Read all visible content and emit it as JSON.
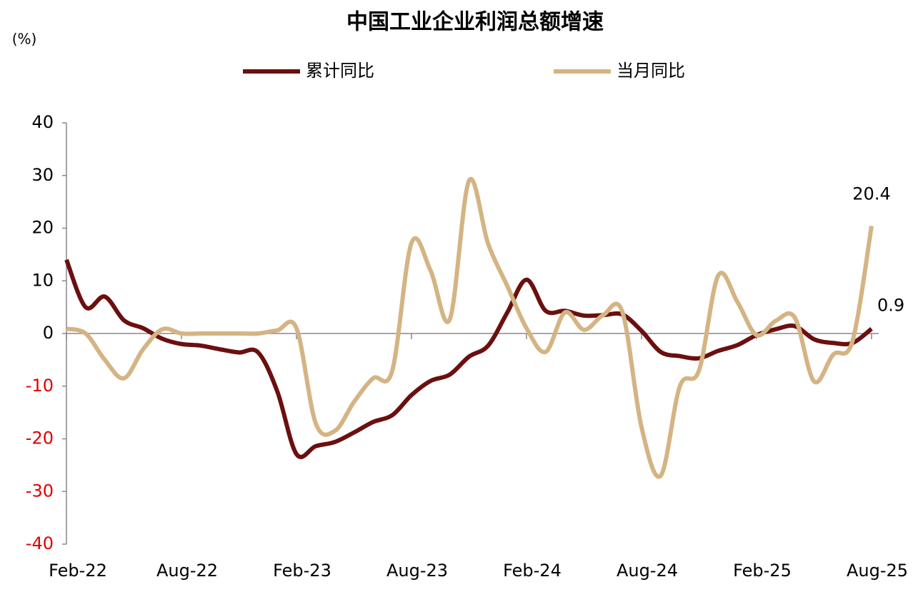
{
  "chart_data": {
    "type": "line",
    "title": "中国工业企业利润总额增速",
    "y_label": "(%)",
    "categories": [
      "Feb-22",
      null,
      null,
      null,
      null,
      null,
      "Aug-22",
      null,
      null,
      null,
      null,
      null,
      "Feb-23",
      null,
      null,
      null,
      null,
      null,
      "Aug-23",
      null,
      null,
      null,
      null,
      null,
      "Feb-24",
      null,
      null,
      null,
      null,
      null,
      "Aug-24",
      null,
      null,
      null,
      null,
      null,
      "Feb-25",
      null,
      null,
      null,
      null,
      null,
      "Aug-25"
    ],
    "series": [
      {
        "name": "累计同比",
        "color": "#6b0f0f",
        "values": [
          14,
          5,
          7,
          2.5,
          1,
          -1,
          -2,
          -2.3,
          -3,
          -3.6,
          -3.6,
          -11,
          -22.9,
          -21.4,
          -20.6,
          -18.8,
          -16.8,
          -15.5,
          -11.7,
          -9,
          -7.8,
          -4.4,
          -2.3,
          4,
          10.2,
          4.3,
          4.3,
          3.4,
          3.5,
          3.6,
          0.5,
          -3.5,
          -4.3,
          -4.7,
          -3.3,
          -2.2,
          -0.3,
          0.8,
          1.4,
          -1.1,
          -1.8,
          -1.8,
          0.9
        ]
      },
      {
        "name": "当月同比",
        "color": "#d4b483",
        "values": [
          0.9,
          0,
          -5,
          -8.5,
          -3,
          0.8,
          0,
          0,
          0,
          0,
          0,
          0.6,
          1,
          -17,
          -18.5,
          -13,
          -8.5,
          -7,
          17.2,
          11.9,
          2.7,
          29,
          17,
          9,
          1,
          -3.5,
          4,
          0.7,
          3.5,
          4.1,
          -17.8,
          -27,
          -10,
          -7,
          11,
          6,
          -0.3,
          2.4,
          3,
          -9.1,
          -4,
          -1.5,
          20.4
        ]
      }
    ],
    "ylim": [
      -40,
      40
    ],
    "yticks": [
      -40,
      -30,
      -20,
      -10,
      0,
      10,
      20,
      30,
      40
    ],
    "negative_tick_color": "#e00000",
    "legend": "top"
  }
}
